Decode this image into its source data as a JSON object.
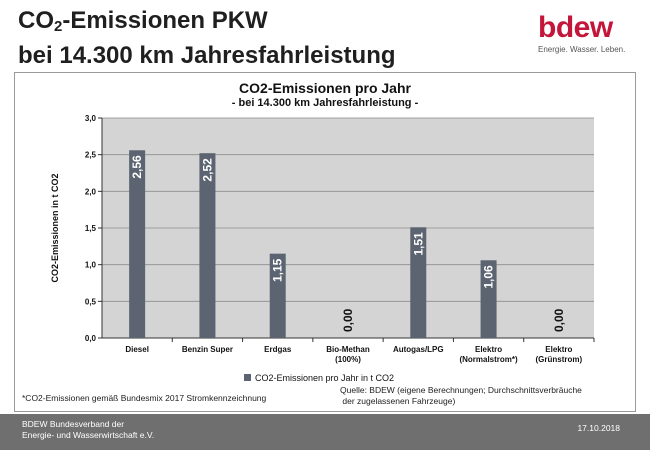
{
  "slide": {
    "title_prefix": "CO",
    "title_sub": "2",
    "title_rest": "-Emissionen PKW",
    "title_line2": "bei 14.300 km Jahresfahrleistung"
  },
  "logo": {
    "word": "bdew",
    "tagline": "Energie. Wasser. Leben.",
    "color": "#c4163a"
  },
  "chart_data": {
    "type": "bar",
    "title": "CO2-Emissionen pro Jahr",
    "subtitle": "- bei 14.300 km Jahresfahrleistung -",
    "ylabel": "CO2-Emissionen in t CO2",
    "ylim": [
      0,
      3.0
    ],
    "yticks": [
      "0,0",
      "0,5",
      "1,0",
      "1,5",
      "2,0",
      "2,5",
      "3,0"
    ],
    "categories": [
      [
        "Diesel"
      ],
      [
        "Benzin Super"
      ],
      [
        "Erdgas"
      ],
      [
        "Bio-Methan",
        "(100%)"
      ],
      [
        "Autogas/LPG"
      ],
      [
        "Elektro",
        "(Normalstrom*)"
      ],
      [
        "Elektro",
        "(Grünstrom)"
      ]
    ],
    "values": [
      2.56,
      2.52,
      1.15,
      0.0,
      1.51,
      1.06,
      0.0
    ],
    "value_labels": [
      "2,56",
      "2,52",
      "1,15",
      "0,00",
      "1,51",
      "1,06",
      "0,00"
    ],
    "series": [
      {
        "name": "CO2-Emissionen pro Jahr in t CO2"
      }
    ],
    "legend_position": "bottom",
    "grid": true,
    "bar_color": "#5b6470",
    "plot_background": "#d4d4d4"
  },
  "notes": {
    "footnote": "*CO2-Emissionen gemäß Bundesmix 2017 Stromkennzeichnung",
    "source_line1": "Quelle: BDEW (eigene Berechnungen; Durchschnittsverbräuche",
    "source_line2": " der zugelassenen Fahrzeuge)"
  },
  "footer": {
    "org_line1": "BDEW Bundesverband der",
    "org_line2": "Energie- und Wasserwirtschaft e.V.",
    "date": "17.10.2018"
  }
}
